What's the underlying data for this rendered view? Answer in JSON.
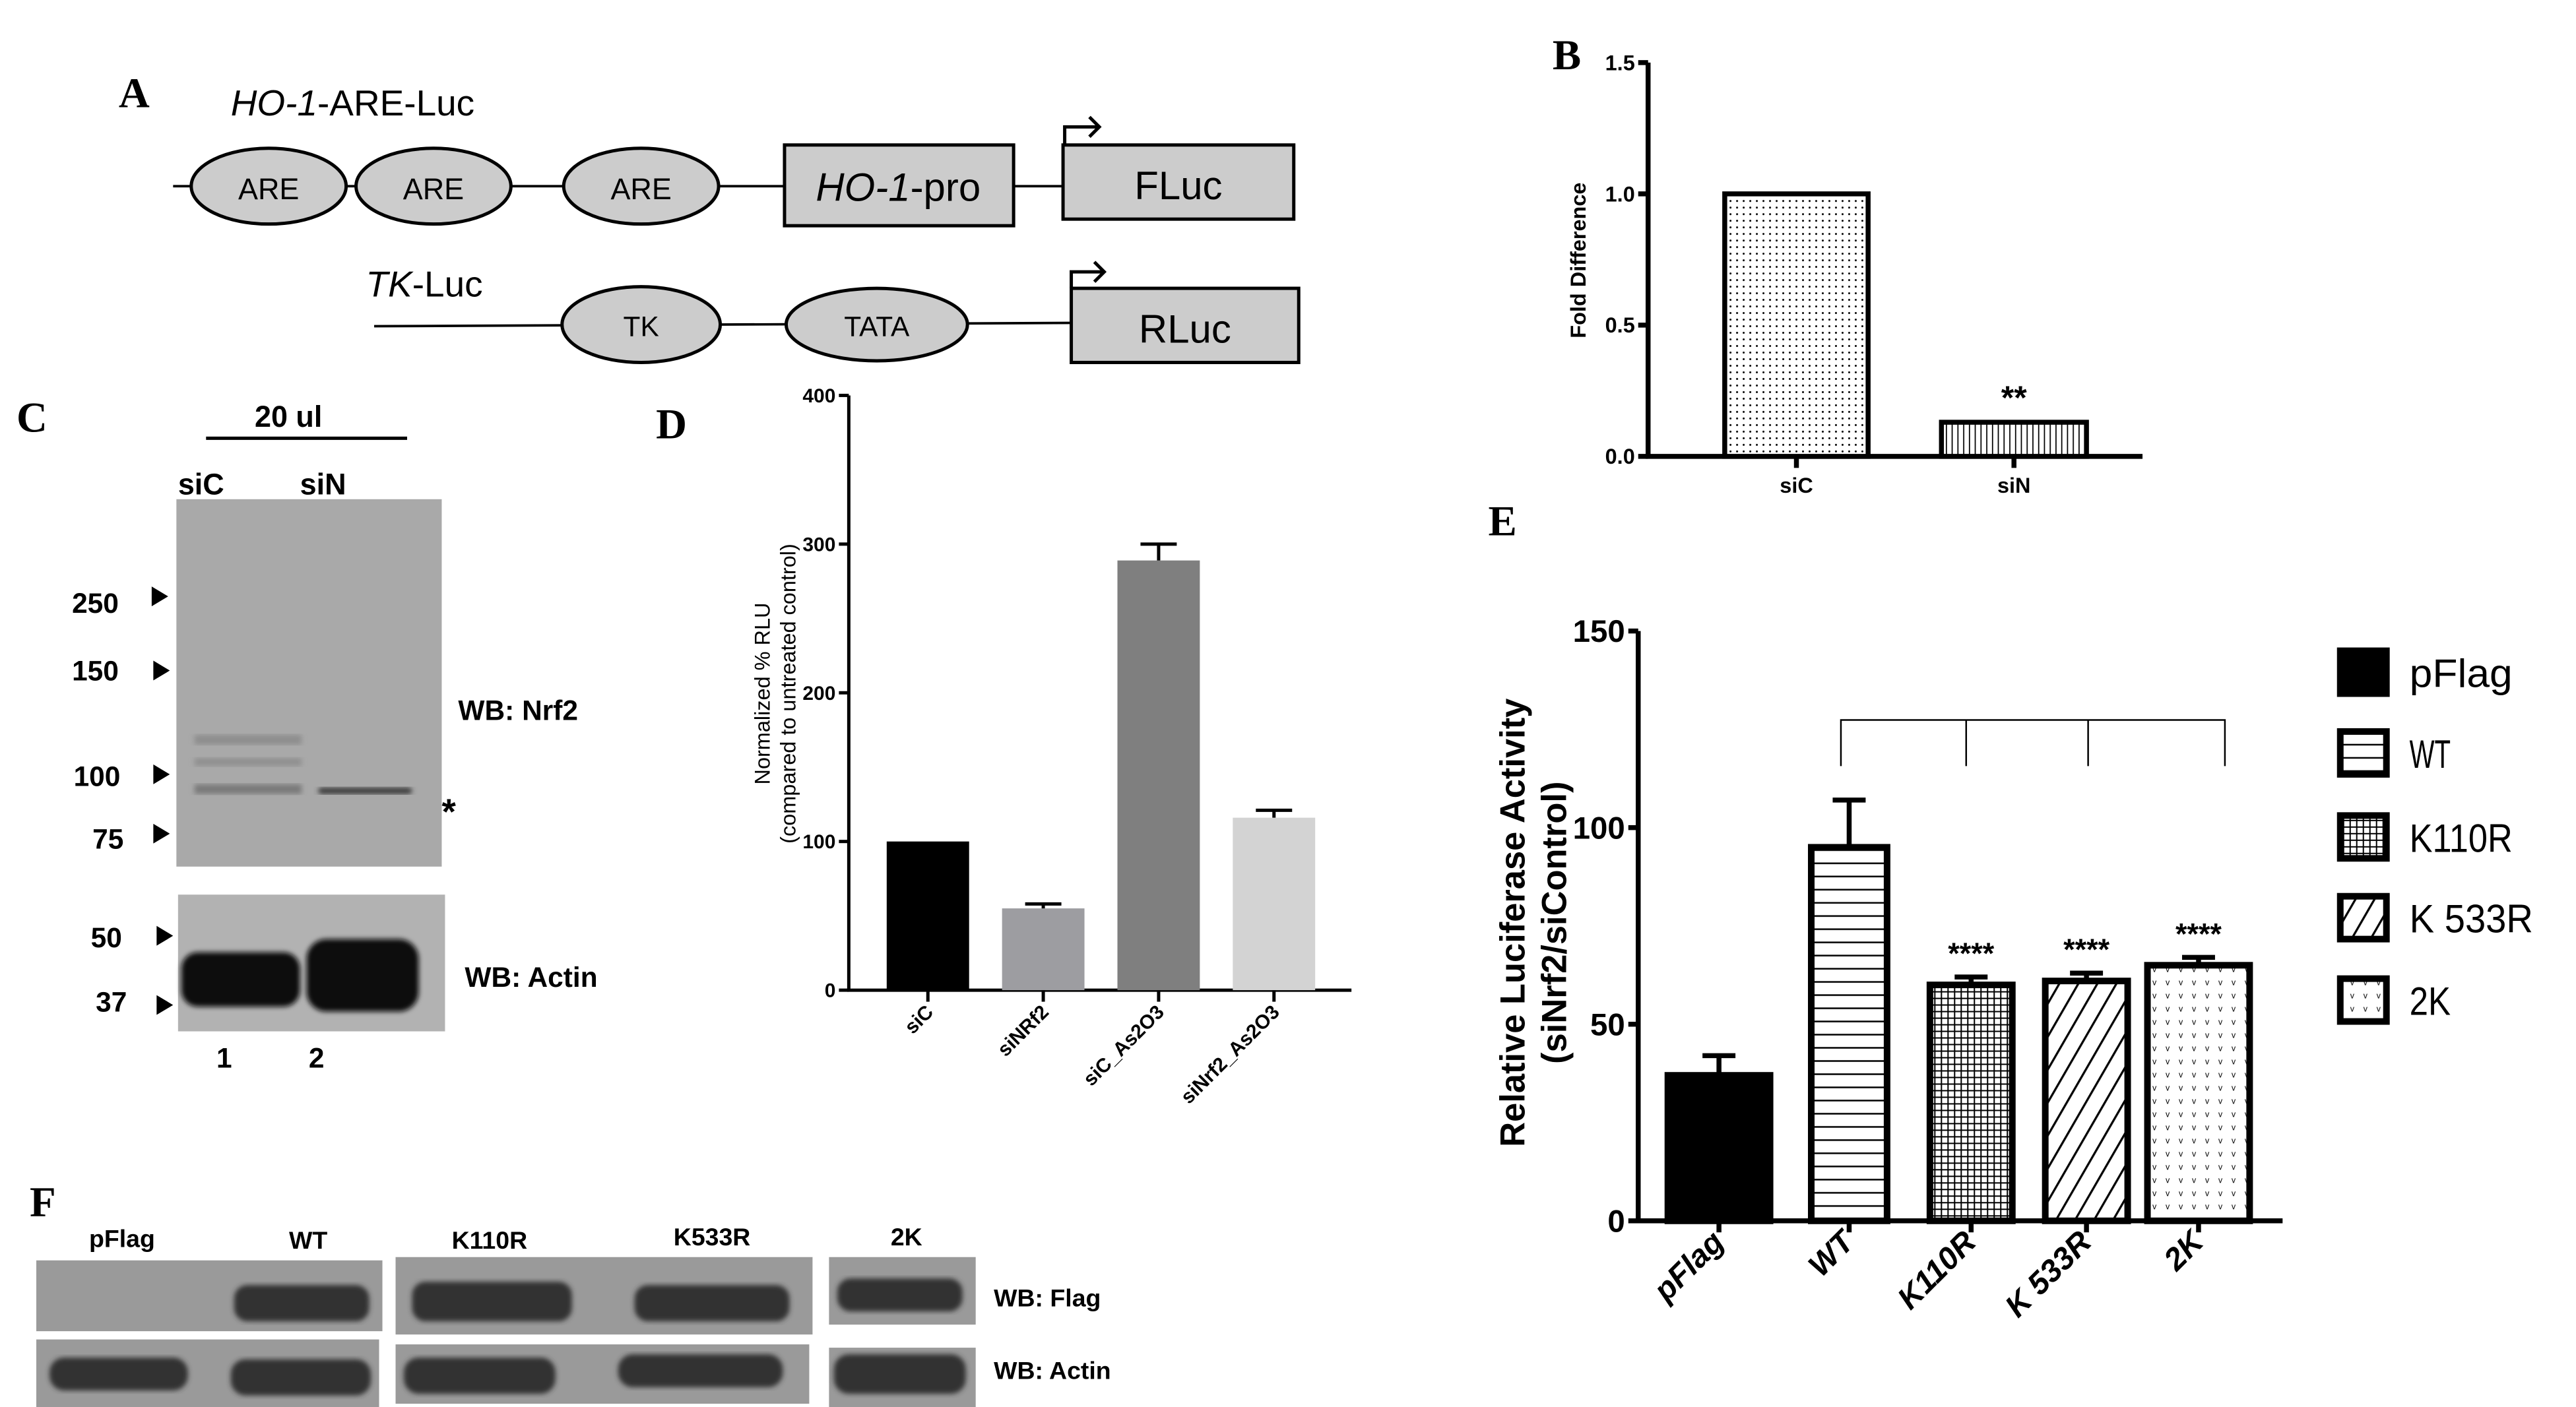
{
  "panels": {
    "A": {
      "letter": "A",
      "construct1": {
        "title_italic": "HO-1",
        "title_rest": "-ARE-Luc",
        "elements": [
          "ARE",
          "ARE",
          "ARE"
        ],
        "promoter_italic": "HO-1",
        "promoter_rest": "-pro",
        "reporter": "FLuc"
      },
      "construct2": {
        "title_italic": "TK",
        "title_rest": "-Luc",
        "elements": [
          "TK",
          "TATA"
        ],
        "reporter": "RLuc"
      }
    },
    "B": {
      "letter": "B"
    },
    "C": {
      "letter": "C",
      "volume": "20 ul",
      "lanes": [
        "siC",
        "siN"
      ],
      "lane_numbers": [
        "1",
        "2"
      ],
      "markers_top": [
        "250",
        "150",
        "100",
        "75"
      ],
      "markers_bottom": [
        "50",
        "37"
      ],
      "wb_top": "WB: Nrf2",
      "wb_bottom": "WB: Actin",
      "asterisk": "*"
    },
    "D": {
      "letter": "D"
    },
    "E": {
      "letter": "E"
    },
    "F": {
      "letter": "F",
      "lanes": [
        "pFlag",
        "WT",
        "K110R",
        "K533R",
        "2K"
      ],
      "wb_top": "WB: Flag",
      "wb_bottom": "WB: Actin"
    }
  },
  "colors": {
    "axis": "#000000",
    "blot": "#a8a8a8",
    "blot_band": "#2a2a2a",
    "diagram_fill": "#cccccc"
  },
  "chart_data": [
    {
      "id": "B",
      "type": "bar",
      "title": "",
      "xlabel": "",
      "ylabel": "Fold Difference",
      "ylim": [
        0,
        1.5
      ],
      "yticks": [
        "0.0",
        "0.5",
        "1.0",
        "1.5"
      ],
      "categories": [
        "siC",
        "siN"
      ],
      "values": [
        1.0,
        0.13
      ],
      "fills": [
        "dots",
        "vlines"
      ],
      "annotations": [
        "",
        "**"
      ]
    },
    {
      "id": "D",
      "type": "bar",
      "ylabel": "Normalized % RLU",
      "ylabel2": "(compared to untreated control)",
      "ylim": [
        0,
        400
      ],
      "yticks": [
        "0",
        "100",
        "200",
        "300",
        "400"
      ],
      "categories": [
        "siC",
        "siNRf2",
        "siC_As2O3",
        "siNrf2_As2O3"
      ],
      "values": [
        100,
        55,
        289,
        116
      ],
      "errors": [
        0,
        3,
        11,
        5
      ],
      "bar_colors": [
        "#000000",
        "#9d9da1",
        "#7f7f7f",
        "#d3d3d3"
      ]
    },
    {
      "id": "E",
      "type": "bar",
      "ylabel": "Relative Luciferase Activity",
      "ylabel2": "(siNrf2/siControl)",
      "ylim": [
        0,
        150
      ],
      "yticks": [
        "0",
        "50",
        "100",
        "150"
      ],
      "categories": [
        "pFlag",
        "WT",
        "K110R",
        "K 533R",
        "2K"
      ],
      "values": [
        37,
        95,
        60,
        61,
        65
      ],
      "errors": [
        5,
        12,
        2,
        2,
        2
      ],
      "fills": [
        "solid",
        "hlines",
        "grid",
        "diag",
        "vdots"
      ],
      "annotations": [
        "",
        "",
        "****",
        "****",
        "****"
      ],
      "legend": [
        "pFlag",
        "WT",
        "K110R",
        "K 533R",
        "2K"
      ],
      "legend_position": "right",
      "comparison_bracket": "WT vs K110R, K 533R, 2K"
    }
  ]
}
